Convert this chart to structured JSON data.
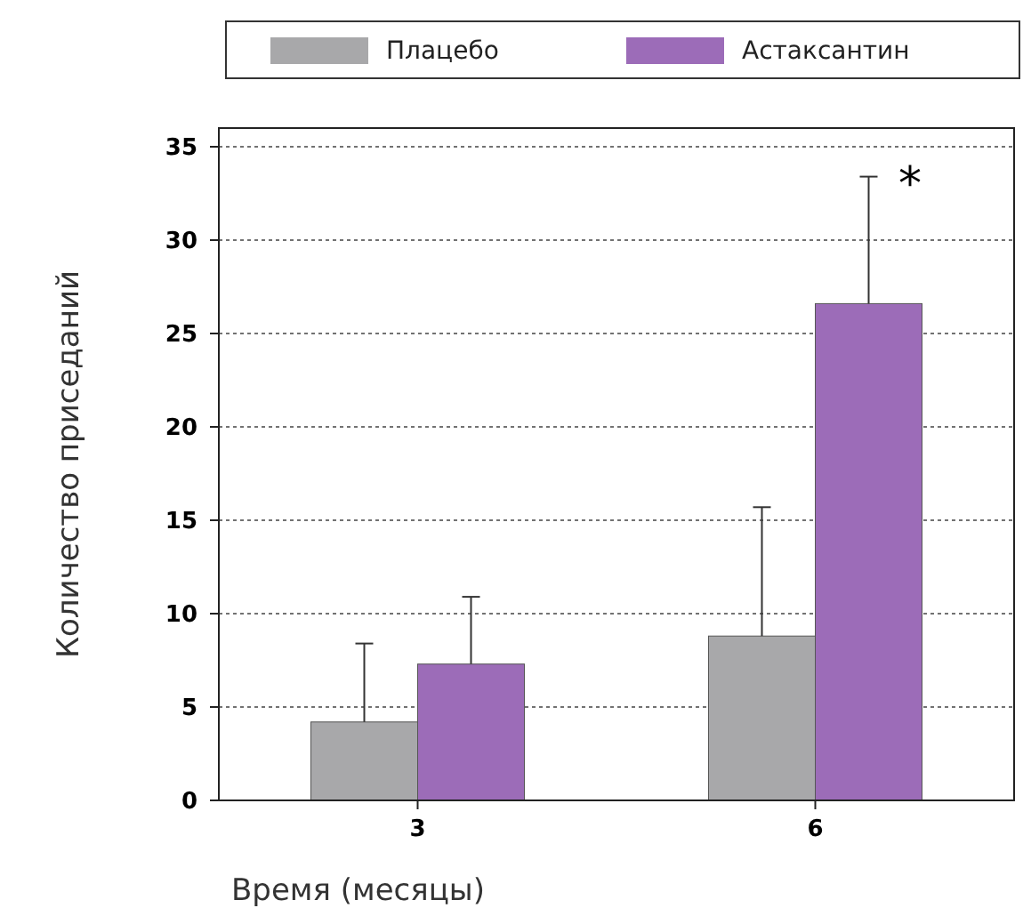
{
  "chart_data": {
    "type": "bar",
    "xlabel": "Время (месяцы)",
    "ylabel": "Количество приседаний",
    "categories": [
      "3",
      "6"
    ],
    "series": [
      {
        "name": "Плацебо",
        "color": "#a8a8aa",
        "values": [
          4.2,
          8.8
        ],
        "errors": [
          [
            4.2,
            8.4
          ],
          [
            8.8,
            15.7
          ]
        ]
      },
      {
        "name": "Астаксантин",
        "color": "#9c6cb8",
        "values": [
          7.3,
          26.6
        ],
        "errors": [
          [
            7.3,
            10.9
          ],
          [
            26.6,
            33.4
          ]
        ]
      }
    ],
    "ylim": [
      0,
      36
    ],
    "yticks": [
      0,
      5,
      10,
      15,
      20,
      25,
      30,
      35
    ],
    "grid": "y",
    "legend": "top",
    "annotations": [
      "*"
    ]
  }
}
